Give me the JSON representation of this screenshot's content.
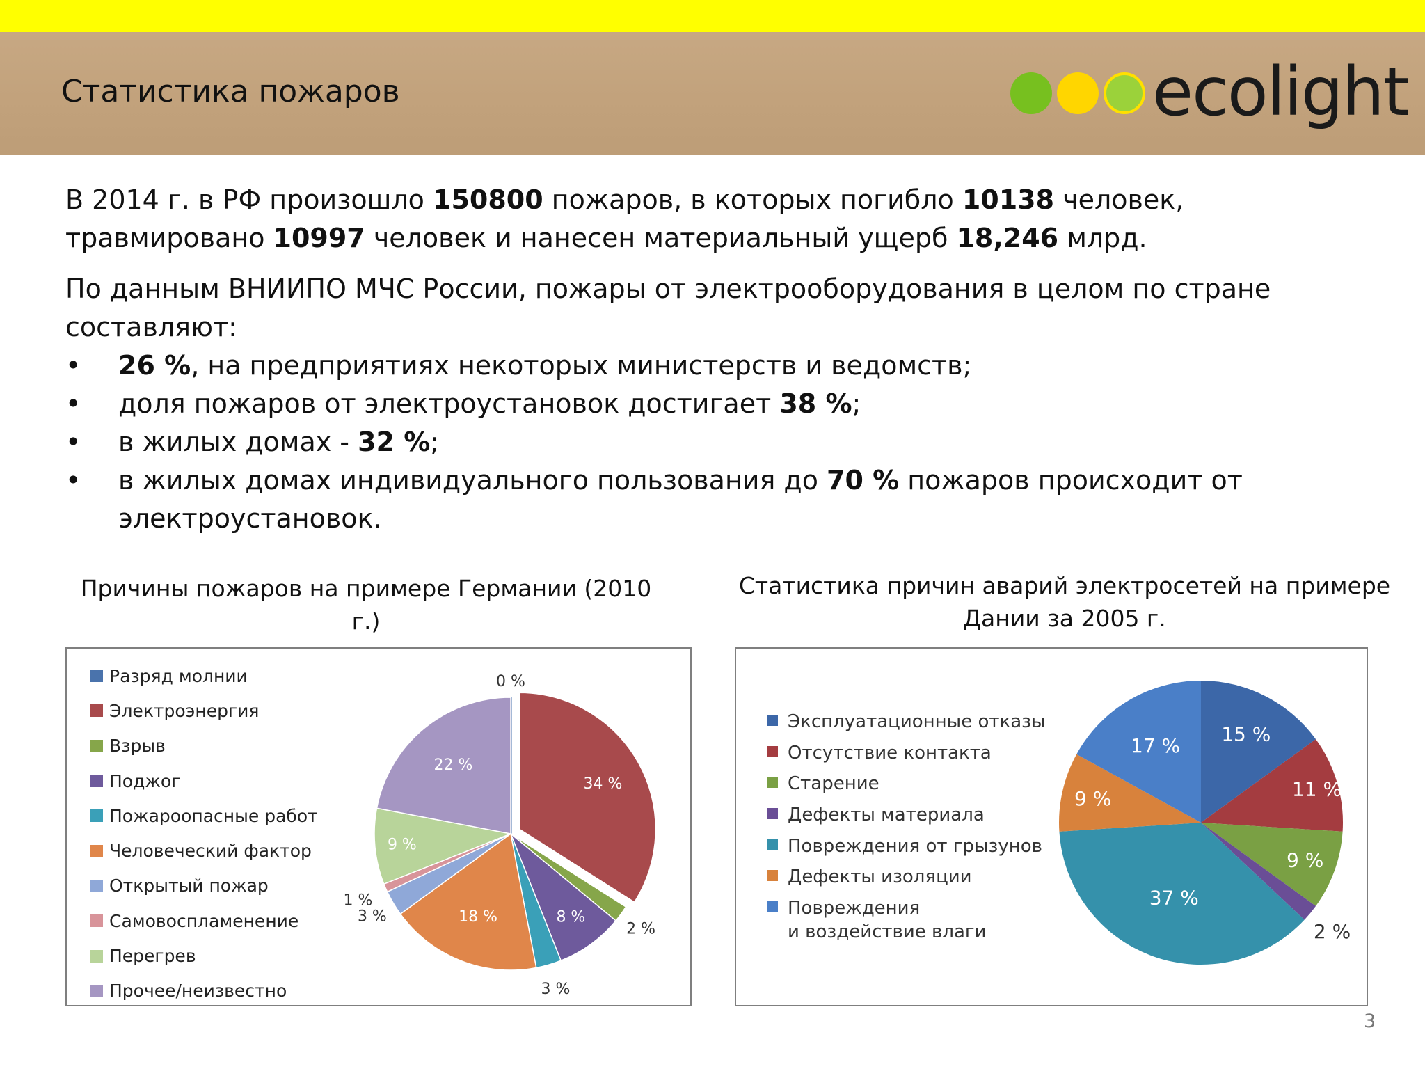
{
  "header": {
    "title": "Статистика пожаров",
    "logo_text": "ecolight"
  },
  "intro": {
    "p1": {
      "t1": "В 2014 г. в РФ произошло ",
      "fires": "150800",
      "t2": " пожаров, в которых погибло ",
      "deaths": "10138",
      "t3": " человек, травмировано ",
      "injured": "10997",
      "t4": " человек и нанесен материальный ущерб ",
      "damage": "18,246",
      "t5": " млрд."
    },
    "p2": "По данным ВНИИПО МЧС России, пожары от  электрооборудования в целом по стране составляют:",
    "bullets": [
      {
        "before": "",
        "bold": "26 %",
        "after": ", на предприятиях некоторых министерств и ведомств;"
      },
      {
        "before": "доля пожаров от электроустановок достигает ",
        "bold": "38 %",
        "after": ";"
      },
      {
        "before": "в жилых домах -  ",
        "bold": "32 %",
        "after": ";"
      },
      {
        "before": "в жилых домах индивидуального пользования до ",
        "bold": "70 %",
        "after": " пожаров   происходит от электроустановок."
      }
    ]
  },
  "page_number": "3",
  "chart_data": [
    {
      "type": "pie",
      "title": "Причины пожаров на примере Германии (2010 г.)",
      "legend_position": "left",
      "categories": [
        "Разряд молнии",
        "Электроэнергия",
        "Взрыв",
        "Поджог",
        "Пожароопасные работы",
        "Человеческий фактор",
        "Открытый пожар",
        "Самовоспламенение",
        "Перегрев",
        "Прочее/неизвестно"
      ],
      "values": [
        0,
        34,
        2,
        8,
        3,
        18,
        3,
        1,
        9,
        22
      ],
      "labels": [
        "0 %",
        "34 %",
        "2 %",
        "8 %",
        "3 %",
        "18 %",
        "3 %",
        "1 %",
        "9 %",
        "22 %"
      ],
      "colors": [
        "#4a73ac",
        "#a84a4c",
        "#86a64a",
        "#6e5a9c",
        "#3aa0b8",
        "#e0864a",
        "#8fa8d8",
        "#d8949a",
        "#b8d49a",
        "#a596c2"
      ],
      "exploded": "Электроэнергия"
    },
    {
      "type": "pie",
      "title": "Статистика причин аварий электросетей на примере Дании за 2005 г.",
      "legend_position": "left",
      "categories": [
        "Эксплуатационные отказы",
        "Отсутствие контакта",
        "Старение",
        "Дефекты материала",
        "Повреждения от грызунов",
        "Дефекты изоляции",
        "Повреждения\nи воздействие влаги"
      ],
      "values": [
        15,
        11,
        9,
        2,
        37,
        9,
        17
      ],
      "labels": [
        "15 %",
        "11 %",
        "9 %",
        "2 %",
        "37 %",
        "9 %",
        "17 %"
      ],
      "colors": [
        "#3c67a8",
        "#a43c40",
        "#7aa044",
        "#6a4e96",
        "#3591ab",
        "#d8823c",
        "#4a7fc8"
      ]
    }
  ]
}
